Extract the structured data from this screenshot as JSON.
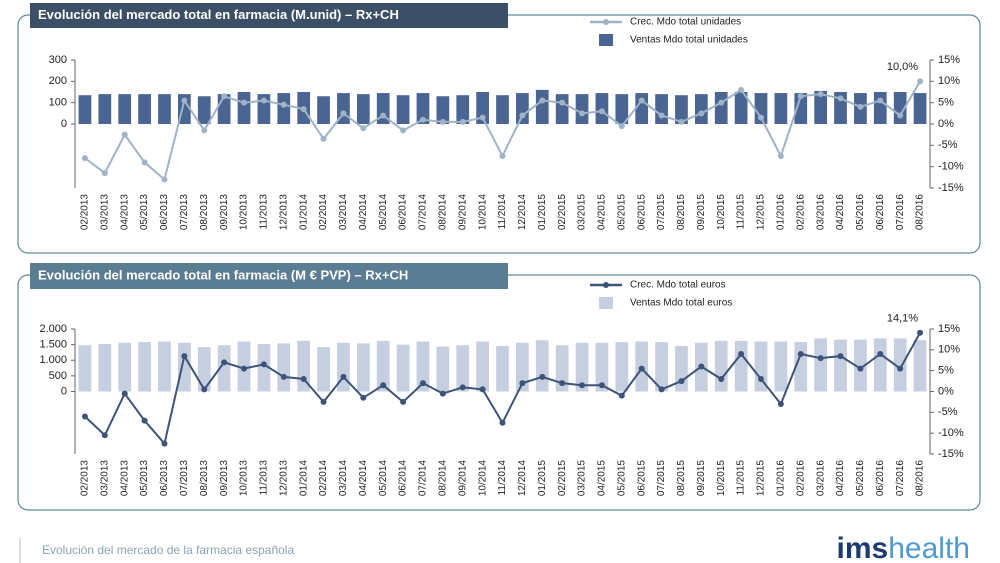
{
  "chart_data": [
    {
      "type": "combo",
      "title": "Evolución del mercado total en farmacia (M.unid) – Rx+CH",
      "categories": [
        "02/2013",
        "03/2013",
        "04/2013",
        "05/2013",
        "06/2013",
        "07/2013",
        "08/2013",
        "09/2013",
        "10/2013",
        "11/2013",
        "12/2013",
        "01/2014",
        "02/2014",
        "03/2014",
        "04/2014",
        "05/2014",
        "06/2014",
        "07/2014",
        "08/2014",
        "09/2014",
        "10/2014",
        "11/2014",
        "12/2014",
        "01/2015",
        "02/2015",
        "03/2015",
        "04/2015",
        "05/2015",
        "06/2015",
        "07/2015",
        "08/2015",
        "09/2015",
        "10/2015",
        "11/2015",
        "12/2015",
        "01/2016",
        "02/2016",
        "03/2016",
        "04/2016",
        "05/2016",
        "06/2016",
        "07/2016",
        "08/2016"
      ],
      "series": [
        {
          "name": "Crec. Mdo total unidades",
          "type": "line",
          "axis": "y2",
          "color": "#9fb3c8",
          "values": [
            -8,
            -11.5,
            -2.5,
            -9,
            -13,
            5.5,
            -1.5,
            6.5,
            5,
            5.5,
            4.5,
            3.5,
            -3.5,
            2.5,
            -1,
            2,
            -1.5,
            1,
            0.5,
            0.5,
            1.5,
            -7.5,
            2,
            5.5,
            5,
            2.5,
            3,
            -0.5,
            5.5,
            2,
            0.5,
            2.5,
            5,
            8,
            1.5,
            -7.5,
            6.5,
            7,
            6,
            4,
            5.5,
            2,
            10
          ],
          "value_labels": [
            null,
            null,
            null,
            null,
            null,
            null,
            null,
            null,
            null,
            null,
            null,
            null,
            null,
            null,
            null,
            null,
            null,
            null,
            null,
            null,
            null,
            null,
            null,
            null,
            null,
            null,
            null,
            null,
            null,
            null,
            null,
            null,
            null,
            null,
            null,
            null,
            null,
            null,
            null,
            null,
            null,
            null,
            "10,0%"
          ]
        },
        {
          "name": "Ventas Mdo total unidades",
          "type": "bar",
          "color": "#4a6591",
          "values": [
            135,
            140,
            140,
            140,
            140,
            140,
            130,
            140,
            150,
            140,
            145,
            150,
            130,
            145,
            140,
            145,
            135,
            145,
            130,
            135,
            150,
            135,
            145,
            160,
            140,
            140,
            145,
            140,
            145,
            140,
            135,
            140,
            150,
            150,
            145,
            145,
            145,
            155,
            150,
            145,
            150,
            150,
            145
          ]
        }
      ],
      "ylim": [
        -300,
        300
      ],
      "yticks": [
        0,
        100,
        200,
        300
      ],
      "y2lim": [
        -15,
        15
      ],
      "y2ticks": [
        {
          "value": -15,
          "label": "-15%"
        },
        {
          "value": -10,
          "label": "-10%"
        },
        {
          "value": -5,
          "label": "-5%"
        },
        {
          "value": 0,
          "label": "0%"
        },
        {
          "value": 5,
          "label": "5%"
        },
        {
          "value": 10,
          "label": "10%"
        },
        {
          "value": 15,
          "label": "15%"
        }
      ]
    },
    {
      "type": "combo",
      "title": "Evolución del mercado total en farmacia (M € PVP) – Rx+CH",
      "categories": [
        "02/2013",
        "03/2013",
        "04/2013",
        "05/2013",
        "06/2013",
        "07/2013",
        "08/2013",
        "09/2013",
        "10/2013",
        "11/2013",
        "12/2013",
        "01/2014",
        "02/2014",
        "03/2014",
        "04/2014",
        "05/2014",
        "06/2014",
        "07/2014",
        "08/2014",
        "09/2014",
        "10/2014",
        "11/2014",
        "12/2014",
        "01/2015",
        "02/2015",
        "03/2015",
        "04/2015",
        "05/2015",
        "06/2015",
        "07/2015",
        "08/2015",
        "09/2015",
        "10/2015",
        "11/2015",
        "12/2015",
        "01/2016",
        "02/2016",
        "03/2016",
        "04/2016",
        "05/2016",
        "06/2016",
        "07/2016",
        "08/2016"
      ],
      "series": [
        {
          "name": "Crec. Mdo total euros",
          "type": "line",
          "axis": "y2",
          "color": "#3d5377",
          "values": [
            -6,
            -10.5,
            -0.5,
            -7,
            -12.5,
            8.5,
            0.5,
            7,
            5.5,
            6.5,
            3.5,
            3,
            -2.5,
            3.5,
            -1.5,
            1.5,
            -2.5,
            2,
            -0.5,
            1,
            0.5,
            -7.5,
            2,
            3.5,
            2,
            1.5,
            1.5,
            -1,
            5.5,
            0.5,
            2.5,
            6,
            3,
            9,
            3,
            -3,
            9,
            8,
            8.5,
            5.5,
            9,
            5.5,
            14.1
          ],
          "value_labels": [
            null,
            null,
            null,
            null,
            null,
            null,
            null,
            null,
            null,
            null,
            null,
            null,
            null,
            null,
            null,
            null,
            null,
            null,
            null,
            null,
            null,
            null,
            null,
            null,
            null,
            null,
            null,
            null,
            null,
            null,
            null,
            null,
            null,
            null,
            null,
            null,
            null,
            null,
            null,
            null,
            null,
            null,
            "14,1%"
          ]
        },
        {
          "name": "Ventas Mdo total euros",
          "type": "bar",
          "color": "#c5cfe0",
          "values": [
            1480,
            1520,
            1560,
            1580,
            1600,
            1560,
            1420,
            1480,
            1600,
            1520,
            1540,
            1620,
            1420,
            1560,
            1540,
            1620,
            1500,
            1600,
            1440,
            1480,
            1600,
            1460,
            1560,
            1640,
            1480,
            1560,
            1560,
            1580,
            1600,
            1580,
            1460,
            1560,
            1620,
            1620,
            1600,
            1600,
            1580,
            1700,
            1660,
            1660,
            1700,
            1700,
            1640
          ]
        }
      ],
      "ylim": [
        -2000,
        2000
      ],
      "yticks": [
        0,
        {
          "value": 500,
          "label": "500"
        },
        {
          "value": 1000,
          "label": "1.000"
        },
        {
          "value": 1500,
          "label": "1.500"
        },
        {
          "value": 2000,
          "label": "2.000"
        }
      ],
      "y2lim": [
        -15,
        15
      ],
      "y2ticks": [
        {
          "value": -15,
          "label": "-15%"
        },
        {
          "value": -10,
          "label": "-10%"
        },
        {
          "value": -5,
          "label": "-5%"
        },
        {
          "value": 0,
          "label": "0%"
        },
        {
          "value": 5,
          "label": "5%"
        },
        {
          "value": 10,
          "label": "10%"
        },
        {
          "value": 15,
          "label": "15%"
        }
      ]
    }
  ],
  "footer": {
    "title": "Evolución del mercado de la farmacia española",
    "logo_a": "ims",
    "logo_b": "health"
  }
}
